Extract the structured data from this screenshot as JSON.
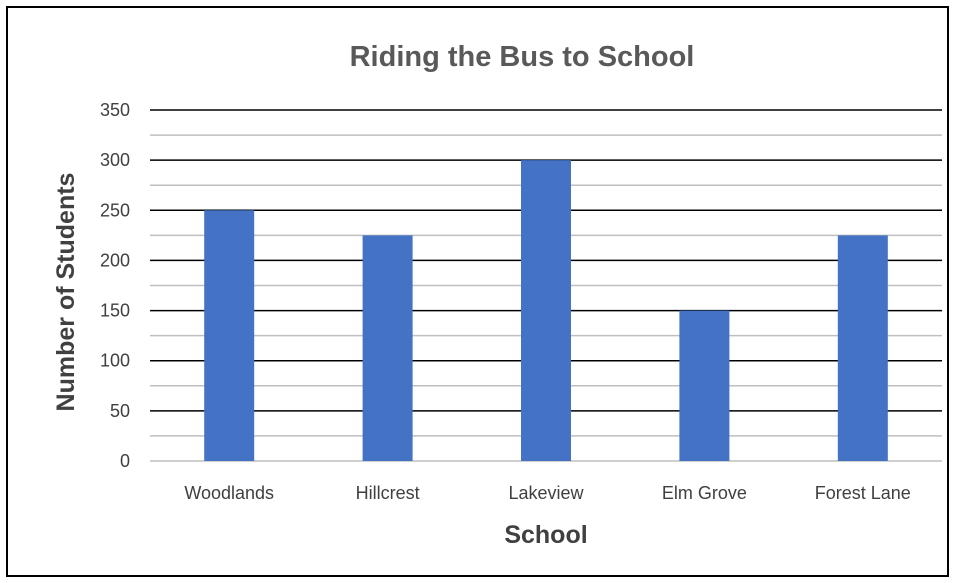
{
  "chart_data": {
    "type": "bar",
    "title": "Riding the Bus to School",
    "xlabel": "School",
    "ylabel": "Number of Students",
    "categories": [
      "Woodlands",
      "Hillcrest",
      "Lakeview",
      "Elm Grove",
      "Forest Lane"
    ],
    "values": [
      250,
      225,
      300,
      150,
      225
    ],
    "ylim": [
      0,
      350
    ],
    "yticks": [
      0,
      50,
      100,
      150,
      200,
      250,
      300,
      350
    ],
    "grid": true,
    "legend": "none",
    "colors": {
      "bar": "#4472C4",
      "major_grid": "#000000",
      "minor_grid": "#BFBFBF",
      "title": "#595959",
      "axis_text": "#404040"
    }
  }
}
